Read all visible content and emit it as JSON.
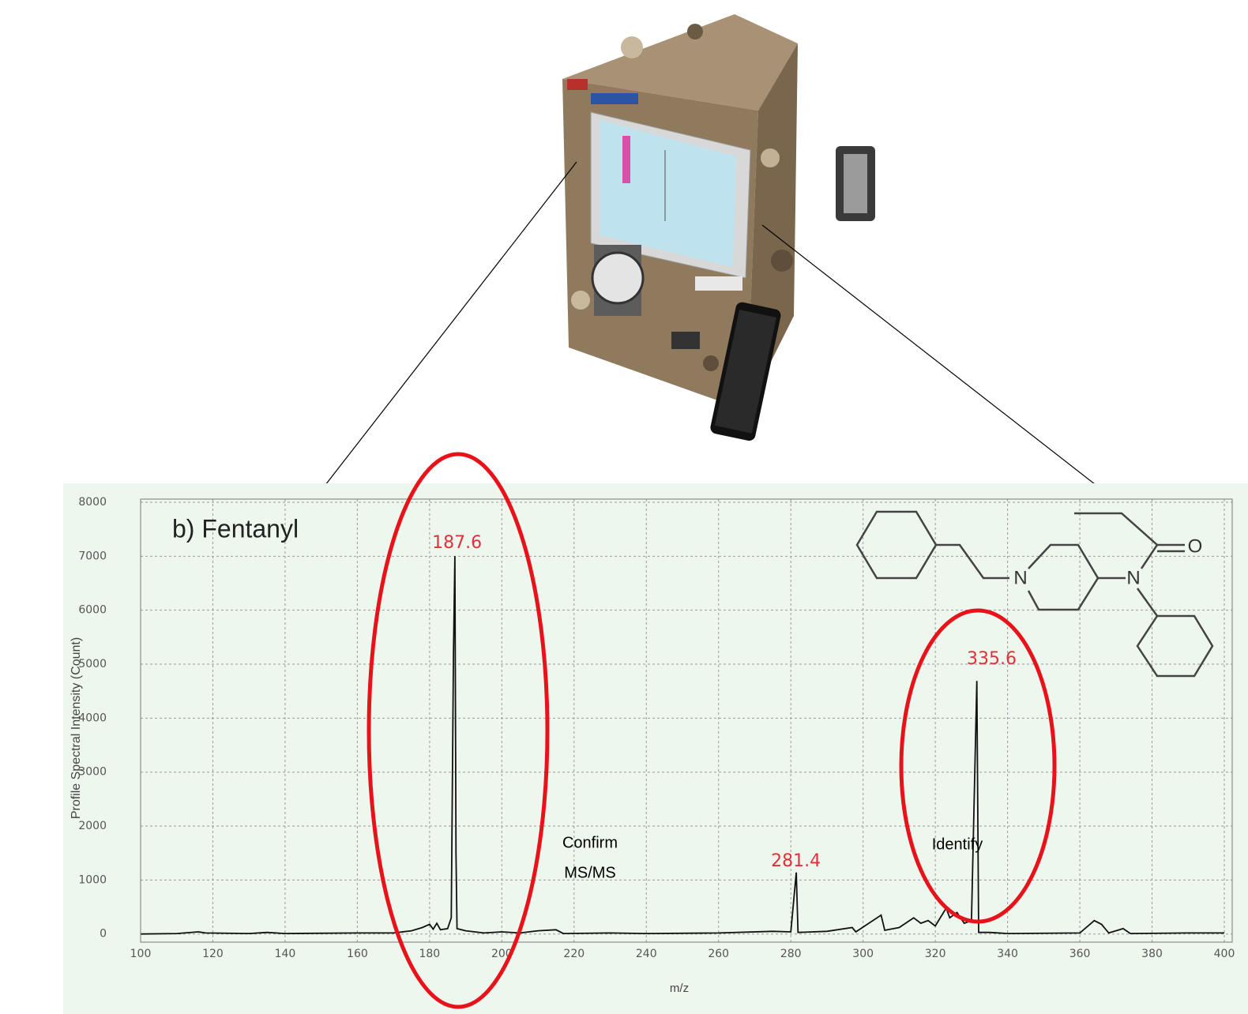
{
  "chart_data": {
    "type": "line",
    "title": "b) Fentanyl",
    "ylabel": "Profile Spectral Intensity (Count)",
    "xlabel": "m/z",
    "xlim": [
      100,
      400
    ],
    "xticks": [
      100,
      120,
      140,
      160,
      180,
      200,
      220,
      240,
      260,
      280,
      300,
      320,
      340,
      360,
      380,
      400
    ],
    "ylim": [
      -150,
      8000
    ],
    "yticks": [
      0,
      1000,
      2000,
      3000,
      4000,
      5000,
      6000,
      7000,
      8000
    ],
    "grid": true,
    "color": "#111111",
    "x": [
      100,
      110,
      116,
      118,
      130,
      135,
      140,
      160,
      170,
      175,
      178,
      180,
      181,
      182,
      183,
      185,
      186,
      186.6,
      187,
      187.3,
      187.6,
      190,
      195,
      200,
      205,
      210,
      215,
      217,
      230,
      240,
      260,
      275,
      280,
      281.5,
      282,
      290,
      297,
      298,
      305,
      306,
      310,
      314,
      316,
      318,
      320,
      323,
      324,
      326,
      328,
      330,
      331.5,
      332,
      335,
      340,
      360,
      364,
      366,
      368,
      372,
      374,
      390,
      400
    ],
    "y": [
      0,
      10,
      40,
      20,
      10,
      30,
      10,
      20,
      20,
      60,
      120,
      180,
      90,
      200,
      80,
      100,
      300,
      5200,
      7000,
      1500,
      100,
      60,
      20,
      40,
      20,
      60,
      80,
      10,
      20,
      10,
      20,
      50,
      40,
      1140,
      30,
      50,
      120,
      40,
      350,
      70,
      120,
      300,
      200,
      250,
      150,
      480,
      300,
      400,
      200,
      250,
      4690,
      30,
      30,
      10,
      20,
      250,
      180,
      20,
      100,
      10,
      20,
      20
    ],
    "peak_labels": [
      187.6,
      281.4,
      335.6
    ],
    "annotations": [
      "Confirm",
      "MS/MS",
      "Identify"
    ],
    "structure_atoms": [
      "N",
      "N",
      "O"
    ]
  }
}
